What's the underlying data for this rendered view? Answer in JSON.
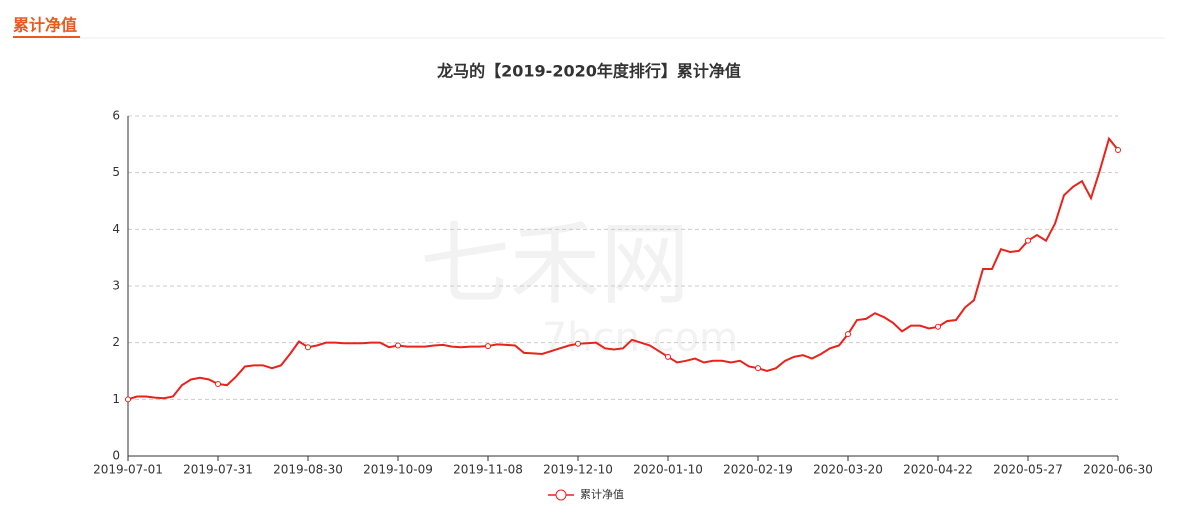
{
  "header": {
    "tab": "累计净值"
  },
  "watermark": {
    "brand": "七禾网",
    "site": "7hcn.com"
  },
  "chart_data": {
    "type": "line",
    "title": "龙马的【2019-2020年度排行】累计净值",
    "categories": [
      "2019-07-01",
      null,
      null,
      null,
      null,
      null,
      null,
      null,
      null,
      null,
      "2019-07-31",
      null,
      null,
      null,
      null,
      null,
      null,
      null,
      null,
      null,
      "2019-08-30",
      null,
      null,
      null,
      null,
      null,
      null,
      null,
      null,
      null,
      "2019-10-09",
      null,
      null,
      null,
      null,
      null,
      null,
      null,
      null,
      null,
      "2019-11-08",
      null,
      null,
      null,
      null,
      null,
      null,
      null,
      null,
      null,
      "2019-12-10",
      null,
      null,
      null,
      null,
      null,
      null,
      null,
      null,
      null,
      "2020-01-10",
      null,
      null,
      null,
      null,
      null,
      null,
      null,
      null,
      null,
      "2020-02-19",
      null,
      null,
      null,
      null,
      null,
      null,
      null,
      null,
      null,
      "2020-03-20",
      null,
      null,
      null,
      null,
      null,
      null,
      null,
      null,
      null,
      "2020-04-22",
      null,
      null,
      null,
      null,
      null,
      null,
      null,
      null,
      null,
      "2020-05-27",
      null,
      null,
      null,
      null,
      null,
      null,
      null,
      null,
      null,
      "2020-06-30"
    ],
    "series": [
      {
        "name": "累计净值",
        "color": "#e8231b",
        "values": [
          1.0,
          1.05,
          1.05,
          1.03,
          1.02,
          1.05,
          1.25,
          1.35,
          1.38,
          1.35,
          1.27,
          1.25,
          1.4,
          1.58,
          1.6,
          1.6,
          1.55,
          1.6,
          1.8,
          2.02,
          1.92,
          1.95,
          2.0,
          2.0,
          1.99,
          1.99,
          1.99,
          2.0,
          2.0,
          1.92,
          1.95,
          1.93,
          1.93,
          1.93,
          1.95,
          1.96,
          1.93,
          1.92,
          1.93,
          1.93,
          1.94,
          1.97,
          1.96,
          1.95,
          1.82,
          1.81,
          1.8,
          1.85,
          1.9,
          1.95,
          1.98,
          1.99,
          2.0,
          1.9,
          1.88,
          1.9,
          2.05,
          2.0,
          1.95,
          1.85,
          1.75,
          1.65,
          1.68,
          1.72,
          1.65,
          1.68,
          1.68,
          1.65,
          1.68,
          1.58,
          1.55,
          1.5,
          1.55,
          1.68,
          1.75,
          1.78,
          1.72,
          1.8,
          1.9,
          1.95,
          2.15,
          2.4,
          2.42,
          2.52,
          2.45,
          2.35,
          2.2,
          2.3,
          2.3,
          2.25,
          2.28,
          2.38,
          2.4,
          2.62,
          2.75,
          3.3,
          3.3,
          3.65,
          3.6,
          3.62,
          3.8,
          3.9,
          3.8,
          4.1,
          4.6,
          4.75,
          4.85,
          4.55,
          5.05,
          5.6,
          5.4
        ]
      }
    ],
    "ylim": [
      0,
      6
    ],
    "yticks": [
      0,
      1,
      2,
      3,
      4,
      5,
      6
    ],
    "grid": true
  }
}
